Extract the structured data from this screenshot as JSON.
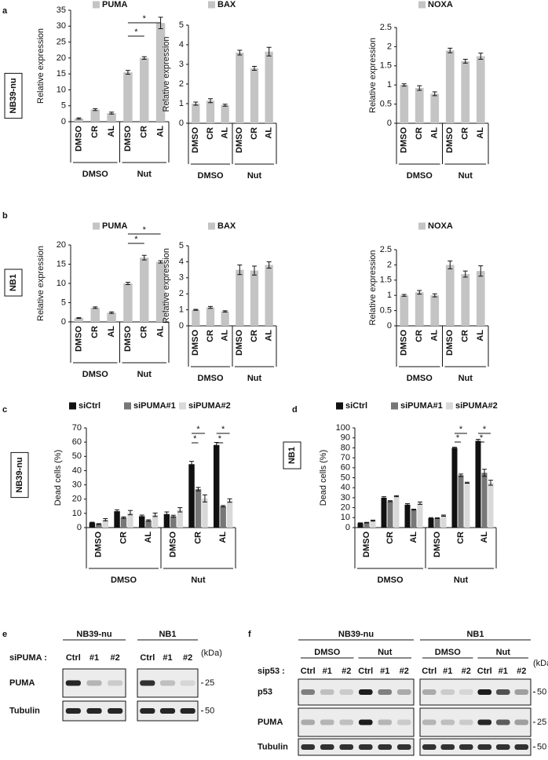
{
  "panel_labels": [
    "a",
    "b",
    "c",
    "d",
    "e",
    "f"
  ],
  "chart_data": [
    {
      "type": "bar",
      "side_label": "NB39-nu",
      "y_label": "Relative expression",
      "categories": [
        "DMSO",
        "CR",
        "AL",
        "DMSO",
        "CR",
        "AL"
      ],
      "groups": [
        "DMSO",
        "Nut"
      ],
      "series": [
        {
          "name": "PUMA",
          "color": "#c4c4c4",
          "values": [
            1,
            3.8,
            2.7,
            15.5,
            20,
            31
          ],
          "errors": [
            0.2,
            0.3,
            0.3,
            0.6,
            0.4,
            1.8
          ]
        }
      ],
      "ylim": [
        0,
        35
      ],
      "yticks": [
        0,
        5,
        10,
        15,
        20,
        25,
        30,
        35
      ],
      "annotations": [
        "*",
        "*"
      ]
    },
    {
      "type": "bar",
      "y_label": "Relative expression",
      "categories": [
        "DMSO",
        "CR",
        "AL",
        "DMSO",
        "CR",
        "AL"
      ],
      "groups": [
        "DMSO",
        "Nut"
      ],
      "series": [
        {
          "name": "BAX",
          "color": "#c4c4c4",
          "values": [
            1,
            1.15,
            0.92,
            3.6,
            2.8,
            3.65
          ],
          "errors": [
            0.08,
            0.1,
            0.05,
            0.12,
            0.1,
            0.22
          ]
        }
      ],
      "ylim": [
        0,
        5
      ],
      "yticks": [
        0,
        1,
        2,
        3,
        4,
        5
      ]
    },
    {
      "type": "bar",
      "y_label": "Relative expression",
      "categories": [
        "DMSO",
        "CR",
        "AL",
        "DMSO",
        "CR",
        "AL"
      ],
      "groups": [
        "DMSO",
        "Nut"
      ],
      "series": [
        {
          "name": "NOXA",
          "color": "#c4c4c4",
          "values": [
            1,
            0.92,
            0.77,
            1.9,
            1.62,
            1.75
          ],
          "errors": [
            0.03,
            0.06,
            0.05,
            0.06,
            0.05,
            0.08
          ]
        }
      ],
      "ylim": [
        0,
        2.5
      ],
      "yticks": [
        0,
        0.5,
        1,
        1.5,
        2,
        2.5
      ]
    },
    {
      "type": "bar",
      "side_label": "NB1",
      "y_label": "Relative expression",
      "categories": [
        "DMSO",
        "CR",
        "AL",
        "DMSO",
        "CR",
        "AL"
      ],
      "groups": [
        "DMSO",
        "Nut"
      ],
      "series": [
        {
          "name": "PUMA",
          "color": "#c4c4c4",
          "values": [
            1,
            3.7,
            2.4,
            10,
            16.7,
            15.6
          ],
          "errors": [
            0.1,
            0.2,
            0.2,
            0.3,
            0.6,
            0.3
          ]
        }
      ],
      "ylim": [
        0,
        20
      ],
      "yticks": [
        0,
        5,
        10,
        15,
        20
      ],
      "annotations": [
        "*",
        "*"
      ]
    },
    {
      "type": "bar",
      "y_label": "Relative expression",
      "categories": [
        "DMSO",
        "CR",
        "AL",
        "DMSO",
        "CR",
        "AL"
      ],
      "groups": [
        "DMSO",
        "Nut"
      ],
      "series": [
        {
          "name": "BAX",
          "color": "#c4c4c4",
          "values": [
            1,
            1.15,
            0.9,
            3.5,
            3.45,
            3.8
          ],
          "errors": [
            0.03,
            0.06,
            0.04,
            0.3,
            0.28,
            0.2
          ]
        }
      ],
      "ylim": [
        0,
        5
      ],
      "yticks": [
        0,
        1,
        2,
        3,
        4,
        5
      ]
    },
    {
      "type": "bar",
      "y_label": "Relative expression",
      "categories": [
        "DMSO",
        "CR",
        "AL",
        "DMSO",
        "CR",
        "AL"
      ],
      "groups": [
        "DMSO",
        "Nut"
      ],
      "series": [
        {
          "name": "NOXA",
          "color": "#c4c4c4",
          "values": [
            1,
            1.1,
            1,
            2,
            1.7,
            1.8
          ],
          "errors": [
            0.03,
            0.06,
            0.05,
            0.13,
            0.1,
            0.17
          ]
        }
      ],
      "ylim": [
        0,
        2.5
      ],
      "yticks": [
        0,
        0.5,
        1,
        1.5,
        2,
        2.5
      ]
    },
    {
      "type": "bar",
      "side_label": "NB39-nu",
      "y_label": "Dead cells (%)",
      "categories": [
        "DMSO",
        "CR",
        "AL",
        "DMSO",
        "CR",
        "AL"
      ],
      "groups": [
        "DMSO",
        "Nut"
      ],
      "series": [
        {
          "name": "siCtrl",
          "color": "#111111",
          "values": [
            3.5,
            11.5,
            8,
            9.5,
            44.5,
            58
          ],
          "errors": [
            0.3,
            1,
            0.8,
            1.5,
            2,
            1.8
          ]
        },
        {
          "name": "siPUMA#1",
          "color": "#777777",
          "values": [
            2.5,
            7,
            5,
            8,
            27,
            15
          ],
          "errors": [
            0.3,
            0.5,
            0.5,
            0.7,
            1.2,
            0.5
          ]
        },
        {
          "name": "siPUMA#2",
          "color": "#d9d9d9",
          "values": [
            5.5,
            10.5,
            9,
            12.5,
            20.5,
            19
          ],
          "errors": [
            0.8,
            1.5,
            1.2,
            1.5,
            2.5,
            1.2
          ]
        }
      ],
      "ylim": [
        0,
        70
      ],
      "yticks": [
        0,
        10,
        20,
        30,
        40,
        50,
        60,
        70
      ],
      "annotations": [
        "*",
        "*",
        "*",
        "*"
      ]
    },
    {
      "type": "bar",
      "side_label": "NB1",
      "y_label": "Dead cells (%)",
      "categories": [
        "DMSO",
        "CR",
        "AL",
        "DMSO",
        "CR",
        "AL"
      ],
      "groups": [
        "DMSO",
        "Nut"
      ],
      "series": [
        {
          "name": "siCtrl",
          "color": "#111111",
          "values": [
            4.5,
            30,
            23,
            9.5,
            80,
            87
          ],
          "errors": [
            0.3,
            1,
            1,
            0.5,
            0.6,
            1.5
          ]
        },
        {
          "name": "siPUMA#1",
          "color": "#777777",
          "values": [
            5,
            26.5,
            18,
            9.5,
            52.5,
            55
          ],
          "errors": [
            0.3,
            0.5,
            0.5,
            0.3,
            1.2,
            3.5
          ]
        },
        {
          "name": "siPUMA#2",
          "color": "#d9d9d9",
          "values": [
            7,
            31.5,
            24.5,
            12,
            45,
            45
          ],
          "errors": [
            0.5,
            0.5,
            1.2,
            0.6,
            0.5,
            2.5
          ]
        }
      ],
      "ylim": [
        0,
        100
      ],
      "yticks": [
        0,
        10,
        20,
        30,
        40,
        50,
        60,
        70,
        80,
        90,
        100
      ],
      "annotations": [
        "*",
        "*",
        "*",
        "*"
      ]
    }
  ],
  "blot_e": {
    "lines": [
      "NB39-nu",
      "NB1"
    ],
    "label": "siPUMA :",
    "lanes": [
      "Ctrl",
      "#1",
      "#2",
      "Ctrl",
      "#1",
      "#2"
    ],
    "unit": "(kDa)",
    "rows": [
      "PUMA",
      "Tubulin"
    ],
    "markers": [
      25,
      50
    ]
  },
  "blot_f": {
    "lines": [
      "NB39-nu",
      "NB1"
    ],
    "treatments": [
      "DMSO",
      "Nut",
      "DMSO",
      "Nut"
    ],
    "label": "sip53 :",
    "lanes": [
      "Ctrl",
      "#1",
      "#2",
      "Ctrl",
      "#1",
      "#2",
      "Ctrl",
      "#1",
      "#2",
      "Ctrl",
      "#1",
      "#2"
    ],
    "unit": "(kDa)",
    "rows": [
      "p53",
      "PUMA",
      "Tubulin"
    ],
    "markers": [
      50,
      25,
      50
    ]
  }
}
